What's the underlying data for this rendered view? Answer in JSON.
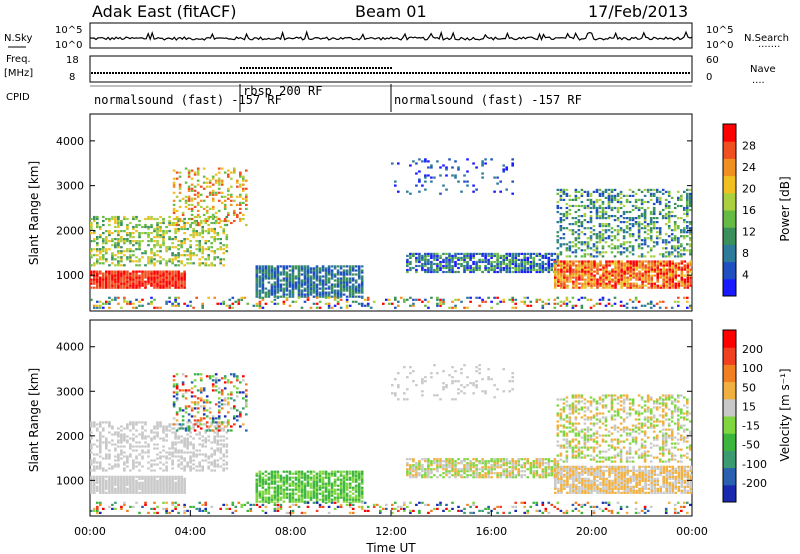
{
  "header": {
    "station": "Adak East (fitACF)",
    "beam": "Beam 01",
    "date": "17/Feb/2013"
  },
  "chart_data": [
    {
      "type": "line",
      "panel": "noise",
      "left_label": "N.Sky",
      "right_label": "N.Search",
      "y_ticks_left": [
        "10^5",
        "10^0"
      ],
      "y_ticks_right": [
        "10^5",
        "10^0"
      ],
      "x": [
        "00:00",
        "04:00",
        "08:00",
        "12:00",
        "16:00",
        "20:00",
        "00:00"
      ]
    },
    {
      "type": "line",
      "panel": "frequency",
      "left_label": "Freq.",
      "left_unit": "[MHz]",
      "right_label": "Nave",
      "y_ticks_left": [
        "18",
        "8"
      ],
      "y_ticks_right": [
        "60",
        "0"
      ]
    },
    {
      "type": "table",
      "panel": "cpid",
      "label": "CPID",
      "segments": [
        {
          "start_hr": 0,
          "end_hr": 6,
          "name": "normalsound (fast) -157 RF"
        },
        {
          "start_hr": 6,
          "end_hr": 12,
          "name": "rbsp 200 RF"
        },
        {
          "start_hr": 12,
          "end_hr": 24,
          "name": "normalsound (fast) -157 RF"
        }
      ]
    },
    {
      "type": "heatmap",
      "panel": "power",
      "ylabel": "Slant Range [km]",
      "xlim_hr": [
        0,
        24
      ],
      "ylim_km": [
        200,
        4600
      ],
      "y_ticks": [
        1000,
        2000,
        3000,
        4000
      ],
      "colorbar": {
        "label": "Power [dB]",
        "ticks": [
          "4",
          "8",
          "12",
          "16",
          "20",
          "24",
          "28"
        ],
        "colors": [
          "#1a1aff",
          "#2050c0",
          "#2e7a9a",
          "#3a8f5a",
          "#66bb44",
          "#aad040",
          "#f0c020",
          "#f09020",
          "#f05020",
          "#ff0000"
        ]
      }
    },
    {
      "type": "heatmap",
      "panel": "velocity",
      "ylabel": "Slant Range [km]",
      "xlabel": "Time UT",
      "xlim_hr": [
        0,
        24
      ],
      "ylim_km": [
        200,
        4600
      ],
      "y_ticks": [
        1000,
        2000,
        3000,
        4000
      ],
      "x_ticks": [
        "00:00",
        "04:00",
        "08:00",
        "12:00",
        "16:00",
        "20:00",
        "00:00"
      ],
      "colorbar": {
        "label": "Velocity [m s⁻¹]",
        "ticks": [
          "200",
          "100",
          "50",
          "15",
          "-15",
          "-50",
          "-100",
          "-200"
        ],
        "colors": [
          "#1a2ab0",
          "#2a60b0",
          "#3a9a70",
          "#3cb53c",
          "#7fd63f",
          "#c8c8c8",
          "#f0b040",
          "#f08020",
          "#f04020",
          "#ff0000"
        ]
      }
    }
  ]
}
